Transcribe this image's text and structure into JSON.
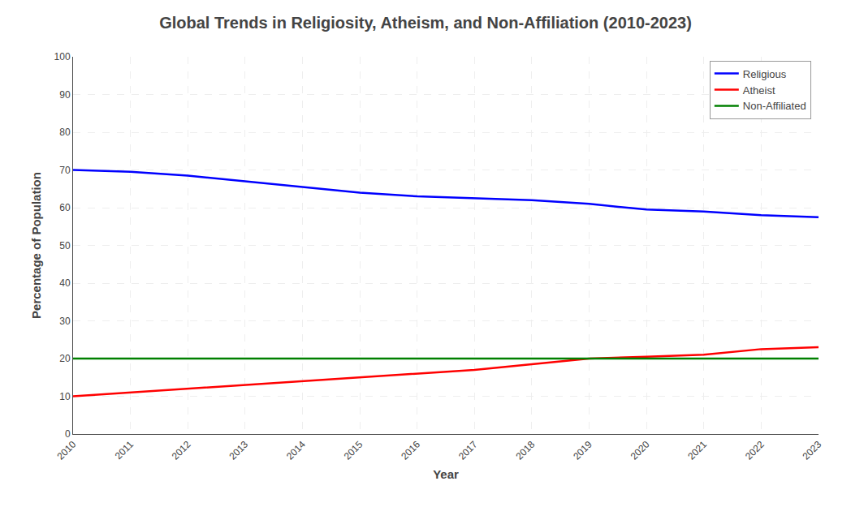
{
  "chart_data": {
    "type": "line",
    "title": "Global Trends in Religiosity, Atheism, and Non-Affiliation (2010-2023)",
    "xlabel": "Year",
    "ylabel": "Percentage of Population",
    "x": [
      2010,
      2011,
      2012,
      2013,
      2014,
      2015,
      2016,
      2017,
      2018,
      2019,
      2020,
      2021,
      2022,
      2023
    ],
    "series": [
      {
        "name": "Religious",
        "color": "#0000ff",
        "values": [
          70,
          69.5,
          68.5,
          67,
          65.5,
          64,
          63,
          62.5,
          62,
          61,
          59.5,
          59,
          58,
          57.5
        ]
      },
      {
        "name": "Atheist",
        "color": "#ff0000",
        "values": [
          10,
          11,
          12,
          13,
          14,
          15,
          16,
          17,
          18.5,
          20,
          20.5,
          21,
          22.5,
          23
        ]
      },
      {
        "name": "Non-Affiliated",
        "color": "#008000",
        "values": [
          20,
          20,
          20,
          20,
          20,
          20,
          20,
          20,
          20,
          20,
          20,
          20,
          20,
          20
        ]
      }
    ],
    "xlim": [
      2010,
      2023
    ],
    "xticks": [
      2010,
      2011,
      2012,
      2013,
      2014,
      2015,
      2016,
      2017,
      2018,
      2019,
      2020,
      2021,
      2022,
      2023
    ],
    "ylim": [
      0,
      100
    ],
    "yticks": [
      0,
      10,
      20,
      30,
      40,
      50,
      60,
      70,
      80,
      90,
      100
    ],
    "grid": true,
    "legend": "upper right"
  }
}
